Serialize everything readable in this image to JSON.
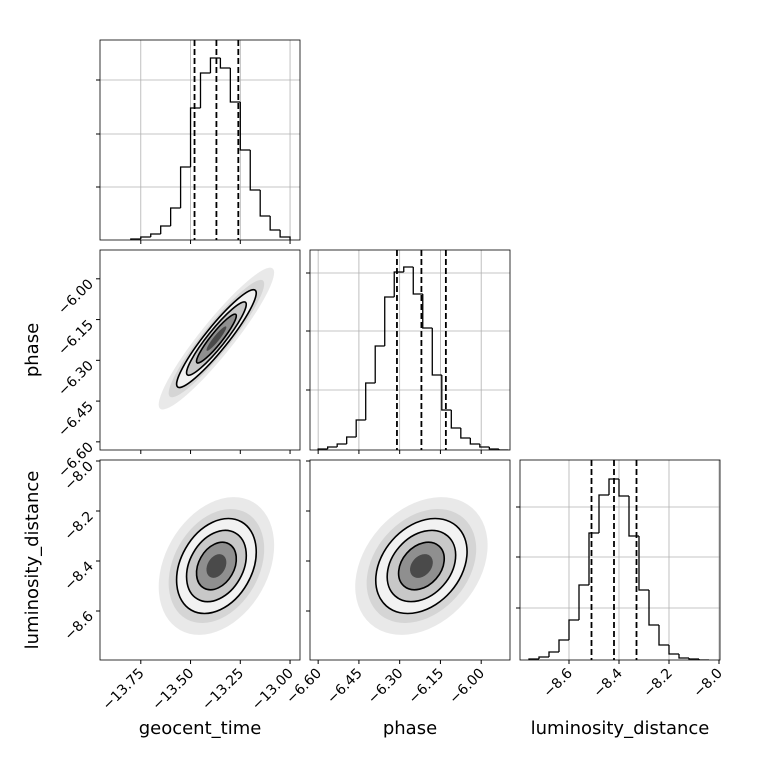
{
  "chart_data": {
    "type": "corner",
    "parameters": [
      {
        "name": "geocent_time",
        "lim": [
          -13.955,
          -12.95
        ],
        "ticks": [
          {
            "value": -13.75,
            "label": "−13.75"
          },
          {
            "value": -13.5,
            "label": "−13.50"
          },
          {
            "value": -13.25,
            "label": "−13.25"
          },
          {
            "value": -13.0,
            "label": "−13.00"
          }
        ]
      },
      {
        "name": "phase",
        "lim": [
          -6.63,
          -5.894
        ],
        "ticks": [
          {
            "value": -6.6,
            "label": "−6.60"
          },
          {
            "value": -6.45,
            "label": "−6.45"
          },
          {
            "value": -6.3,
            "label": "−6.30"
          },
          {
            "value": -6.15,
            "label": "−6.15"
          },
          {
            "value": -6.0,
            "label": "−6.00"
          }
        ]
      },
      {
        "name": "luminosity_distance",
        "lim": [
          -8.796,
          -7.996
        ],
        "ticks": [
          {
            "value": -8.6,
            "label": "−8.6"
          },
          {
            "value": -8.4,
            "label": "−8.4"
          },
          {
            "value": -8.2,
            "label": "−8.2"
          },
          {
            "value": -8.0,
            "label": "−8.0"
          }
        ]
      }
    ],
    "panels": [
      {
        "type": "histogram",
        "color": "#000000",
        "grid": true,
        "bins": [
          -13.8,
          -13.75,
          -13.7,
          -13.65,
          -13.6,
          -13.55,
          -13.5,
          -13.45,
          -13.4,
          -13.35,
          -13.3,
          -13.25,
          -13.2,
          -13.15,
          -13.1,
          -13.05,
          -13.0
        ],
        "counts": [
          1,
          3,
          6,
          14,
          32,
          73,
          132,
          167,
          182,
          172,
          138,
          90,
          50,
          24,
          10,
          3
        ],
        "ylim": [
          0,
          200
        ],
        "yticks": [
          53,
          106,
          160
        ],
        "quantiles": [
          -13.48,
          -13.37,
          -13.26
        ]
      },
      {
        "type": "density",
        "mean": [
          -13.37,
          -6.22
        ],
        "std": [
          0.1,
          0.09
        ],
        "corr": 0.93,
        "levels": [
          0.5,
          1,
          1.5,
          2
        ]
      },
      {
        "type": "histogram",
        "color": "#000000",
        "grid": true,
        "bins": [
          -6.6,
          -6.565,
          -6.53,
          -6.495,
          -6.46,
          -6.425,
          -6.39,
          -6.355,
          -6.32,
          -6.285,
          -6.25,
          -6.215,
          -6.18,
          -6.145,
          -6.11,
          -6.075,
          -6.04,
          -6.005,
          -5.97,
          -5.935,
          -5.9
        ],
        "counts": [
          1,
          3,
          6,
          13,
          30,
          67,
          104,
          153,
          178,
          183,
          156,
          122,
          75,
          40,
          22,
          12,
          6,
          3,
          1,
          0
        ],
        "ylim": [
          0,
          200
        ],
        "yticks": [
          60,
          119,
          177
        ],
        "quantiles": [
          -6.31,
          -6.22,
          -6.13
        ]
      },
      {
        "type": "density",
        "mean": [
          -13.37,
          -8.42
        ],
        "std": [
          0.1,
          0.095
        ],
        "corr": 0.3,
        "levels": [
          0.5,
          1,
          1.5,
          2
        ]
      },
      {
        "type": "density",
        "mean": [
          -6.22,
          -8.42
        ],
        "std": [
          0.084,
          0.095
        ],
        "corr": 0.3,
        "levels": [
          0.5,
          1,
          1.5,
          2
        ]
      },
      {
        "type": "histogram",
        "color": "#000000",
        "grid": true,
        "bins": [
          -8.76,
          -8.72,
          -8.68,
          -8.64,
          -8.6,
          -8.56,
          -8.52,
          -8.48,
          -8.44,
          -8.4,
          -8.36,
          -8.32,
          -8.28,
          -8.24,
          -8.2,
          -8.16,
          -8.12,
          -8.08,
          -8.04
        ],
        "counts": [
          1,
          3,
          8,
          20,
          40,
          75,
          127,
          165,
          181,
          164,
          124,
          70,
          35,
          15,
          6,
          2,
          1,
          0
        ],
        "ylim": [
          0,
          200
        ],
        "yticks": [
          52,
          103,
          153
        ],
        "quantiles": [
          -8.51,
          -8.42,
          -8.33
        ]
      }
    ]
  }
}
